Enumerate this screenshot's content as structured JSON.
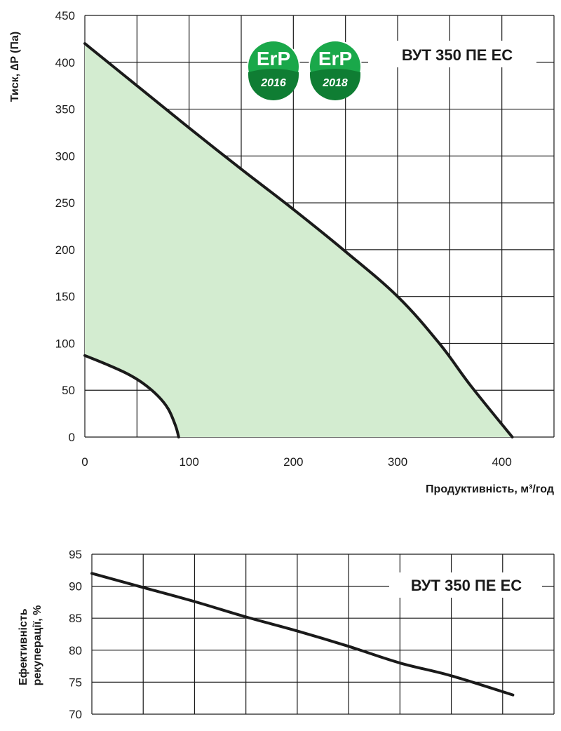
{
  "colors": {
    "fill": "#d3ecd0",
    "grid": "#1a1a1a",
    "curve": "#1a1a1a",
    "badge": "#1aa84a",
    "badge_dark": "#0f7d33"
  },
  "badges": [
    {
      "label": "ErP",
      "year": "2016"
    },
    {
      "label": "ErP",
      "year": "2018"
    }
  ],
  "chart_data": [
    {
      "type": "area",
      "title": "ВУТ 350 ПЕ ЕС",
      "xlabel": "Продуктивність, м³/год",
      "ylabel": "Тиск, ∆P (Па)",
      "xlim": [
        0,
        450
      ],
      "ylim": [
        0,
        450
      ],
      "xticks": [
        0,
        100,
        200,
        300,
        400
      ],
      "xtick_labels": [
        "0",
        "100",
        "200",
        "300",
        "400"
      ],
      "yticks": [
        0,
        50,
        100,
        150,
        200,
        250,
        300,
        350,
        400,
        450
      ],
      "ytick_labels": [
        "0",
        "50",
        "100",
        "150",
        "200",
        "250",
        "300",
        "350",
        "400",
        "450"
      ],
      "xgrid": [
        0,
        50,
        100,
        150,
        200,
        250,
        300,
        350,
        400,
        450
      ],
      "series": [
        {
          "role": "max",
          "x": [
            0,
            50,
            100,
            150,
            200,
            250,
            300,
            340,
            370,
            410
          ],
          "y": [
            420,
            375,
            330,
            286,
            243,
            198,
            150,
            100,
            55,
            0
          ]
        },
        {
          "role": "min",
          "x": [
            0,
            20,
            40,
            55,
            70,
            80,
            87,
            90
          ],
          "y": [
            87,
            78,
            68,
            58,
            44,
            30,
            12,
            0
          ]
        }
      ]
    },
    {
      "type": "line",
      "title": "ВУТ 350 ПЕ ЕС",
      "xlabel": "",
      "ylabel": "Ефективність рекуперації, %",
      "ylabel_lines": [
        "Ефективність",
        "рекуперації, %"
      ],
      "xlim": [
        0,
        450
      ],
      "ylim": [
        70,
        95
      ],
      "yticks": [
        70,
        75,
        80,
        85,
        90,
        95
      ],
      "ytick_labels": [
        "70",
        "75",
        "80",
        "85",
        "90",
        "95"
      ],
      "xgrid": [
        0,
        50,
        100,
        150,
        200,
        250,
        300,
        350,
        400,
        450
      ],
      "series": [
        {
          "x": [
            0,
            50,
            100,
            150,
            200,
            250,
            300,
            350,
            410
          ],
          "y": [
            92,
            89.8,
            87.6,
            85.2,
            83,
            80.6,
            78,
            76,
            73
          ]
        }
      ]
    }
  ]
}
